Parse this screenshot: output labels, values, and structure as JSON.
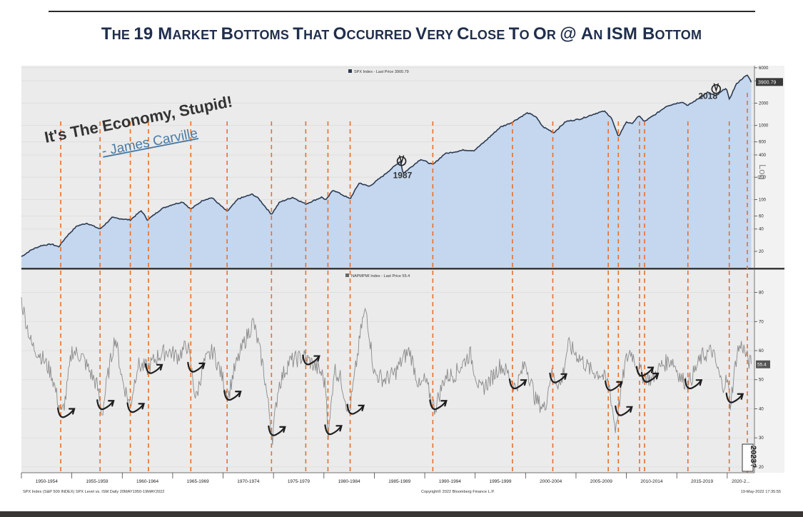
{
  "title": "The 19 Market Bottoms That Occurred Very Close To Or @ An ISM Bottom",
  "title_parts": [
    {
      "big": "T",
      "small": "HE "
    },
    {
      "big": "19 M",
      "small": "ARKET "
    },
    {
      "big": "B",
      "small": "OTTOMS "
    },
    {
      "big": "T",
      "small": "HAT "
    },
    {
      "big": "O",
      "small": "CCURRED "
    },
    {
      "big": "V",
      "small": "ERY "
    },
    {
      "big": "C",
      "small": "LOSE "
    },
    {
      "big": "T",
      "small": "O "
    },
    {
      "big": "O",
      "small": "R "
    },
    {
      "big": "@ A",
      "small": "N "
    },
    {
      "big": "ISM B",
      "small": "OTTOM"
    }
  ],
  "quote": {
    "text": "It's The Economy, Stupid!",
    "author": "- James Carville"
  },
  "colors": {
    "spx_fill": "#c4d7ef",
    "spx_line": "#2c3a52",
    "ism_line": "#8a8a8a",
    "marker": "#e8702a",
    "arrow": "#1e1e1e",
    "panel_bg": "#ebebeb",
    "title": "#1f2e4c"
  },
  "chart_data": [
    {
      "type": "area",
      "name": "SPX Index - Last Price 3900.79",
      "legend": "SPX Index - Last Price 3900.79",
      "last_value": "3900.79",
      "y_scale": "log",
      "y_ticks": [
        20,
        40,
        60,
        100,
        200,
        400,
        600,
        1000,
        2000,
        4000,
        6000
      ],
      "y_tick_labels": [
        "20",
        "40",
        "60",
        "100",
        "200",
        "400",
        "600",
        "1000",
        "2000",
        "4000",
        "6000"
      ],
      "ylim": [
        12,
        6400
      ],
      "annotations": [
        {
          "x": 1987.7,
          "label": "1987"
        },
        {
          "x": 2018.9,
          "label": "2018"
        }
      ],
      "points": [
        [
          1950.0,
          17
        ],
        [
          1951.0,
          21
        ],
        [
          1952.0,
          24
        ],
        [
          1953.0,
          25
        ],
        [
          1953.7,
          23
        ],
        [
          1954.5,
          32
        ],
        [
          1955.5,
          44
        ],
        [
          1956.5,
          48
        ],
        [
          1957.8,
          40
        ],
        [
          1959.0,
          57
        ],
        [
          1960.8,
          53
        ],
        [
          1961.9,
          71
        ],
        [
          1962.5,
          53
        ],
        [
          1963.9,
          75
        ],
        [
          1964.9,
          85
        ],
        [
          1966.0,
          93
        ],
        [
          1966.8,
          74
        ],
        [
          1968.0,
          98
        ],
        [
          1968.9,
          106
        ],
        [
          1970.4,
          69
        ],
        [
          1971.5,
          102
        ],
        [
          1972.9,
          118
        ],
        [
          1973.5,
          104
        ],
        [
          1974.8,
          63
        ],
        [
          1975.6,
          92
        ],
        [
          1976.9,
          107
        ],
        [
          1978.2,
          87
        ],
        [
          1979.8,
          108
        ],
        [
          1980.2,
          98
        ],
        [
          1980.9,
          135
        ],
        [
          1982.6,
          102
        ],
        [
          1983.5,
          168
        ],
        [
          1984.5,
          150
        ],
        [
          1985.9,
          211
        ],
        [
          1987.6,
          330
        ],
        [
          1987.85,
          224
        ],
        [
          1989.6,
          350
        ],
        [
          1990.8,
          295
        ],
        [
          1992.0,
          416
        ],
        [
          1993.9,
          466
        ],
        [
          1994.9,
          459
        ],
        [
          1996.0,
          615
        ],
        [
          1997.5,
          950
        ],
        [
          1998.6,
          1090
        ],
        [
          1999.5,
          1300
        ],
        [
          2000.2,
          1480
        ],
        [
          2001.0,
          1320
        ],
        [
          2001.7,
          965
        ],
        [
          2002.8,
          800
        ],
        [
          2004.0,
          1130
        ],
        [
          2005.5,
          1230
        ],
        [
          2007.0,
          1460
        ],
        [
          2007.8,
          1560
        ],
        [
          2008.5,
          1280
        ],
        [
          2009.2,
          700
        ],
        [
          2010.0,
          1120
        ],
        [
          2010.5,
          1050
        ],
        [
          2011.3,
          1360
        ],
        [
          2011.75,
          1120
        ],
        [
          2012.9,
          1420
        ],
        [
          2014.0,
          1830
        ],
        [
          2015.5,
          2080
        ],
        [
          2016.1,
          1860
        ],
        [
          2017.5,
          2480
        ],
        [
          2018.05,
          2800
        ],
        [
          2018.9,
          2500
        ],
        [
          2019.9,
          3230
        ],
        [
          2020.2,
          2240
        ],
        [
          2020.9,
          3620
        ],
        [
          2021.5,
          4300
        ],
        [
          2022.0,
          4770
        ],
        [
          2022.38,
          3900.79
        ]
      ]
    },
    {
      "type": "line",
      "name": "NAPMPMI Index - Last Price 55.4",
      "legend": "NAPMPMI Index - Last Price 55.4",
      "last_value": "55.4",
      "y_ticks": [
        20,
        30,
        40,
        50,
        60,
        70,
        80
      ],
      "y_tick_labels": [
        "20",
        "30",
        "40",
        "50",
        "60",
        "70",
        "80"
      ],
      "ylim": [
        18,
        88
      ],
      "points": [
        [
          1950.0,
          77
        ],
        [
          1951.0,
          62
        ],
        [
          1952.0,
          58
        ],
        [
          1953.0,
          52
        ],
        [
          1953.6,
          43
        ],
        [
          1954.0,
          38
        ],
        [
          1954.4,
          44
        ],
        [
          1955.0,
          60
        ],
        [
          1956.0,
          58
        ],
        [
          1957.5,
          48
        ],
        [
          1958.0,
          38
        ],
        [
          1958.5,
          50
        ],
        [
          1959.3,
          65
        ],
        [
          1960.0,
          50
        ],
        [
          1960.8,
          41
        ],
        [
          1961.5,
          55
        ],
        [
          1962.5,
          54
        ],
        [
          1963.5,
          58
        ],
        [
          1964.5,
          60
        ],
        [
          1965.5,
          58
        ],
        [
          1966.5,
          62
        ],
        [
          1967.3,
          43
        ],
        [
          1968.0,
          55
        ],
        [
          1969.0,
          60
        ],
        [
          1970.0,
          50
        ],
        [
          1970.5,
          44
        ],
        [
          1971.0,
          52
        ],
        [
          1972.0,
          62
        ],
        [
          1973.0,
          70
        ],
        [
          1974.0,
          54
        ],
        [
          1974.9,
          30.4
        ],
        [
          1975.5,
          48
        ],
        [
          1976.5,
          56
        ],
        [
          1978.0,
          58
        ],
        [
          1979.0,
          55
        ],
        [
          1979.8,
          52
        ],
        [
          1980.2,
          47
        ],
        [
          1980.45,
          30
        ],
        [
          1980.8,
          45
        ],
        [
          1981.0,
          54
        ],
        [
          1981.7,
          50
        ],
        [
          1982.5,
          38
        ],
        [
          1983.0,
          50
        ],
        [
          1983.8,
          70
        ],
        [
          1984.2,
          74
        ],
        [
          1985.0,
          52
        ],
        [
          1986.0,
          50
        ],
        [
          1987.0,
          52
        ],
        [
          1988.0,
          58
        ],
        [
          1988.5,
          60
        ],
        [
          1989.5,
          47
        ],
        [
          1990.0,
          50
        ],
        [
          1991.0,
          40
        ],
        [
          1992.0,
          51
        ],
        [
          1993.0,
          52
        ],
        [
          1994.5,
          59
        ],
        [
          1995.5,
          46
        ],
        [
          1996.5,
          50
        ],
        [
          1997.5,
          55
        ],
        [
          1998.3,
          52
        ],
        [
          1999.0,
          47
        ],
        [
          2000.0,
          56
        ],
        [
          2001.0,
          43
        ],
        [
          2001.9,
          40
        ],
        [
          2002.5,
          52
        ],
        [
          2003.5,
          48
        ],
        [
          2004.2,
          62
        ],
        [
          2005.5,
          57
        ],
        [
          2006.5,
          53
        ],
        [
          2007.5,
          52
        ],
        [
          2008.3,
          48
        ],
        [
          2008.9,
          33
        ],
        [
          2009.9,
          56
        ],
        [
          2010.4,
          60
        ],
        [
          2011.5,
          52
        ],
        [
          2012.5,
          50
        ],
        [
          2013.5,
          55
        ],
        [
          2014.5,
          57
        ],
        [
          2015.5,
          50
        ],
        [
          2016.2,
          49
        ],
        [
          2017.5,
          58
        ],
        [
          2018.5,
          60
        ],
        [
          2019.5,
          48
        ],
        [
          2020.0,
          50
        ],
        [
          2020.3,
          41.5
        ],
        [
          2021.0,
          60
        ],
        [
          2021.5,
          62
        ],
        [
          2022.0,
          57
        ],
        [
          2022.38,
          55.4
        ]
      ]
    }
  ],
  "x_axis": {
    "xlim": [
      1950,
      2022.7
    ],
    "ticks": [
      1950,
      1955,
      1960,
      1965,
      1970,
      1975,
      1980,
      1985,
      1990,
      1995,
      2000,
      2005,
      2010,
      2015,
      2020
    ],
    "labels": [
      "1950-1954",
      "1955-1959",
      "1960-1964",
      "1965-1969",
      "1970-1974",
      "1975-1979",
      "1980-1984",
      "1985-1989",
      "1990-1994",
      "1995-1999",
      "2000-2004",
      "2005-2009",
      "2010-2014",
      "2015-2019",
      "2020-2..."
    ]
  },
  "bottoms": [
    1953.9,
    1957.8,
    1960.8,
    1962.6,
    1966.8,
    1970.4,
    1974.8,
    1978.2,
    1980.4,
    1982.6,
    1990.8,
    1998.7,
    2002.7,
    2008.2,
    2009.2,
    2011.3,
    2011.8,
    2016.1,
    2020.2
  ],
  "footer": {
    "left": "SPX Index (S&P 500 INDEX) SPX Level vs. ISM  Daily 20MAY1950-19MAY2022",
    "center": "Copyright© 2022 Bloomberg Finance L.P.",
    "right": "19-May-2022 17:35:55"
  },
  "side_label": "2023?",
  "log_label": "Log"
}
